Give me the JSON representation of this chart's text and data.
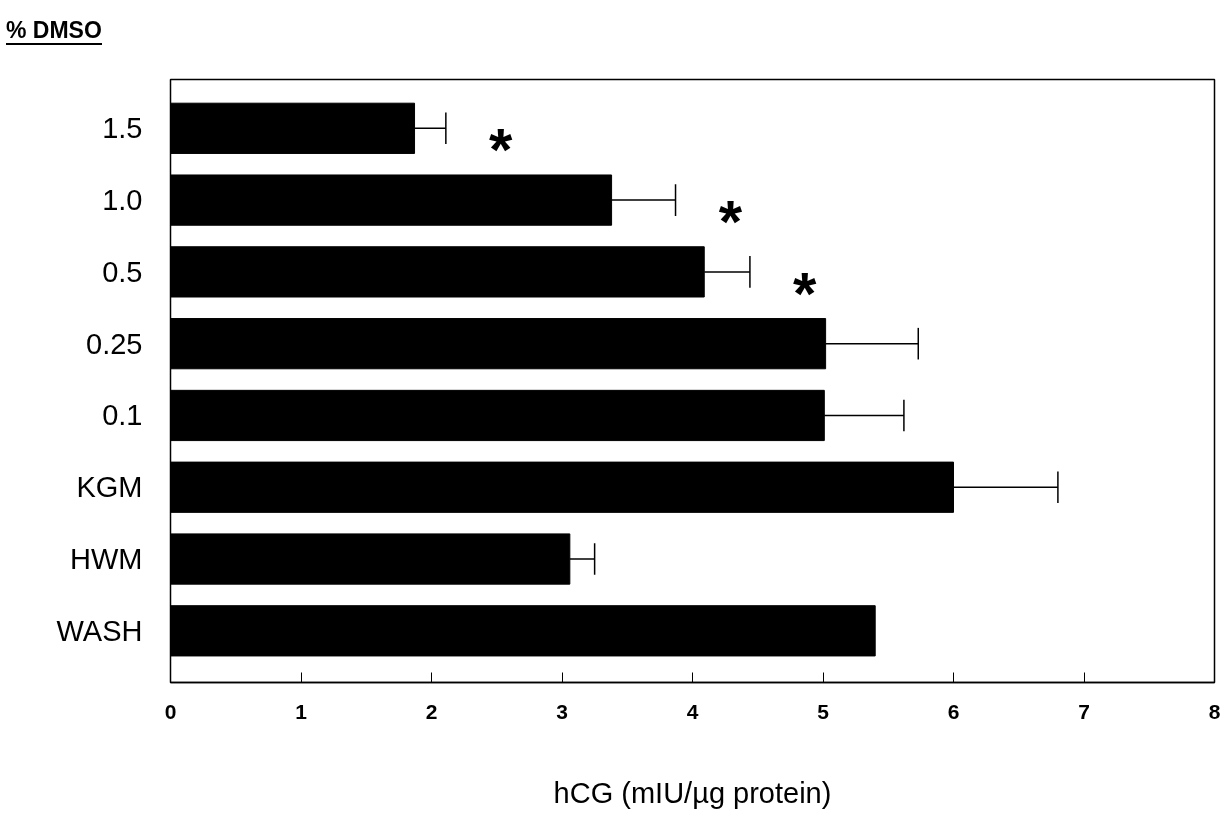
{
  "chart_data": {
    "type": "bar",
    "orientation": "horizontal",
    "ylabel": "% DMSO",
    "xlabel": "hCG (mIU/µg protein)",
    "categories": [
      "1.5",
      "1.0",
      "0.5",
      "0.25",
      "0.1",
      "KGM",
      "HWM",
      "WASH"
    ],
    "values": [
      1.87,
      3.38,
      4.09,
      5.02,
      5.01,
      6.0,
      3.06,
      5.4
    ],
    "errors": [
      [
        1.87,
        2.11
      ],
      [
        3.38,
        3.87
      ],
      [
        4.09,
        4.44
      ],
      [
        5.02,
        5.73
      ],
      [
        5.01,
        5.62
      ],
      [
        6.0,
        6.8
      ],
      [
        3.06,
        3.25
      ],
      null
    ],
    "color": "#000000",
    "xlim": [
      0,
      8
    ],
    "xticks": [
      0,
      1,
      2,
      3,
      4,
      5,
      6,
      7,
      8
    ],
    "annotations": [
      "*",
      "*",
      "*"
    ]
  }
}
